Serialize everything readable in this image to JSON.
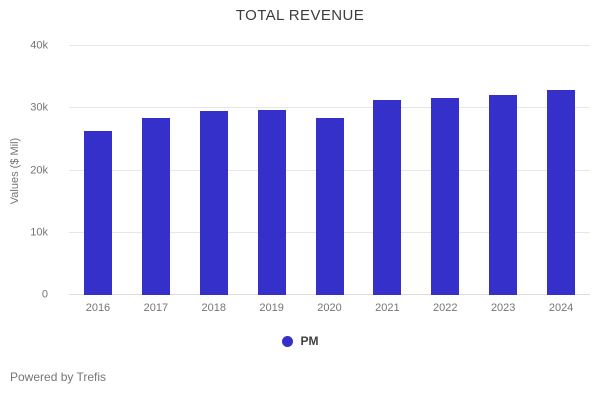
{
  "title": "TOTAL REVENUE",
  "legend": {
    "label": "PM",
    "color": "#3530c9"
  },
  "footer": {
    "powered_by": "Powered by Trefis"
  },
  "chart_data": {
    "type": "bar",
    "title": "TOTAL REVENUE",
    "categories": [
      "2016",
      "2017",
      "2018",
      "2019",
      "2020",
      "2021",
      "2022",
      "2023",
      "2024"
    ],
    "series": [
      {
        "name": "PM",
        "values": [
          26400,
          28500,
          29500,
          29800,
          28500,
          31300,
          31600,
          32200,
          32900
        ]
      }
    ],
    "xlabel": "",
    "ylabel": "Values ($ Mil)",
    "ylim": [
      0,
      40000
    ],
    "ytick_values": [
      0,
      10000,
      20000,
      30000,
      40000
    ],
    "ytick_labels": [
      "0",
      "10k",
      "20k",
      "30k",
      "40k"
    ],
    "bar_color": "#3530c9",
    "grid": true,
    "legend_position": "bottom"
  }
}
